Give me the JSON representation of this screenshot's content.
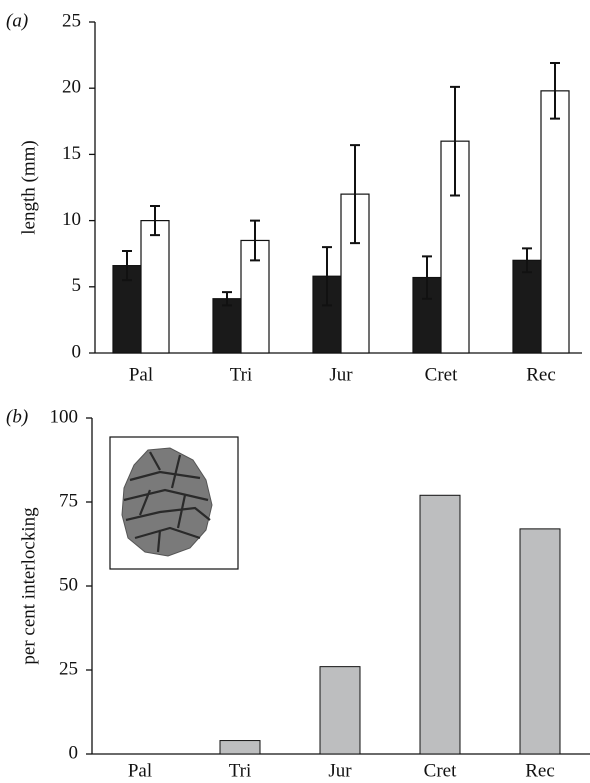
{
  "chart_data": [
    {
      "type": "bar",
      "panel_label": "(a)",
      "y_label": "length (mm)",
      "categories": [
        "Pal",
        "Tri",
        "Jur",
        "Cret",
        "Rec"
      ],
      "series": [
        {
          "color": "#1a1a1a",
          "values": [
            6.6,
            4.1,
            5.8,
            5.7,
            7.0
          ],
          "errors": [
            1.1,
            0.5,
            2.2,
            1.6,
            0.9
          ]
        },
        {
          "color": "#ffffff",
          "values": [
            10.0,
            8.5,
            12.0,
            16.0,
            19.8
          ],
          "errors": [
            1.1,
            1.5,
            3.7,
            4.1,
            2.1
          ]
        }
      ],
      "ylim": [
        0,
        25
      ],
      "yticks": [
        0,
        5,
        10,
        15,
        20,
        25
      ]
    },
    {
      "type": "bar",
      "panel_label": "(b)",
      "y_label": "per cent interlocking",
      "categories": [
        "Pal",
        "Tri",
        "Jur",
        "Cret",
        "Rec"
      ],
      "values": [
        0,
        4,
        26,
        77,
        67
      ],
      "color": "#bdbebf",
      "ylim": [
        0,
        100
      ],
      "yticks": [
        0,
        25,
        50,
        75,
        100
      ]
    }
  ]
}
